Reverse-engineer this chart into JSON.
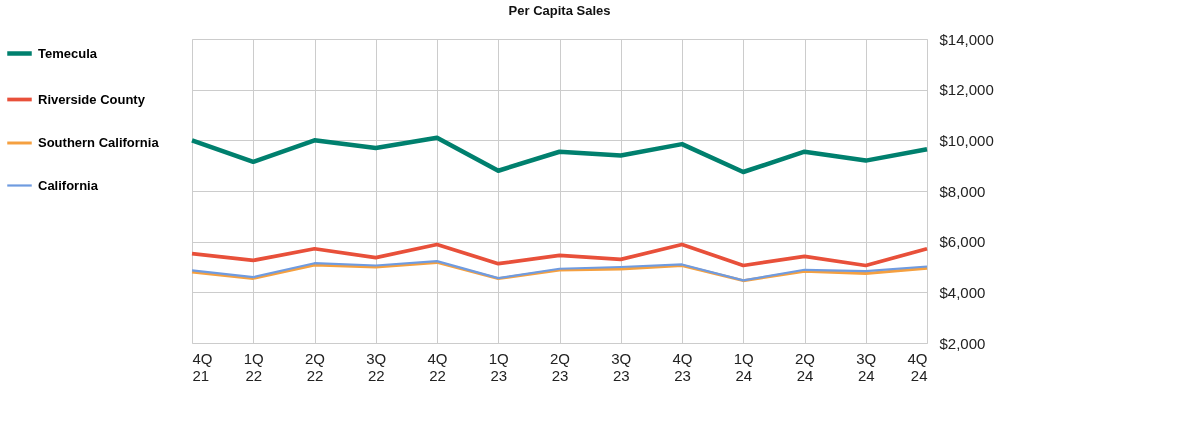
{
  "chart_data": {
    "type": "line",
    "title": "Per Capita Sales",
    "categories": [
      "4Q 21",
      "1Q 22",
      "2Q 22",
      "3Q 22",
      "4Q 22",
      "1Q 23",
      "2Q 23",
      "3Q 23",
      "4Q 23",
      "1Q 24",
      "2Q 24",
      "3Q 24",
      "4Q 24"
    ],
    "series": [
      {
        "name": "Temecula",
        "color": "#00806e",
        "values": [
          10000,
          9150,
          10000,
          9700,
          10100,
          8800,
          9550,
          9400,
          9850,
          8750,
          9550,
          9200,
          9650
        ]
      },
      {
        "name": "Riverside County",
        "color": "#e8503a",
        "values": [
          5530,
          5260,
          5720,
          5370,
          5890,
          5130,
          5460,
          5300,
          5890,
          5060,
          5420,
          5060,
          5720
        ]
      },
      {
        "name": "Southern California",
        "color": "#f5a040",
        "values": [
          4800,
          4550,
          5080,
          5000,
          5180,
          4540,
          4880,
          4920,
          5060,
          4460,
          4830,
          4740,
          4950
        ]
      },
      {
        "name": "California",
        "color": "#6f9be0",
        "values": [
          4870,
          4600,
          5150,
          5060,
          5230,
          4560,
          4930,
          5000,
          5100,
          4470,
          4890,
          4840,
          5020
        ]
      }
    ],
    "ylim": [
      2000,
      14000
    ],
    "yticks": [
      {
        "value": 2000,
        "label": "$2,000"
      },
      {
        "value": 4000,
        "label": "$4,000"
      },
      {
        "value": 6000,
        "label": "$6,000"
      },
      {
        "value": 8000,
        "label": "$8,000"
      },
      {
        "value": 10000,
        "label": "$10,000"
      },
      {
        "value": 12000,
        "label": "$12,000"
      },
      {
        "value": 14000,
        "label": "$14,000"
      }
    ],
    "grid": true,
    "legend": "left",
    "marker": "none",
    "line_style": "solid"
  }
}
